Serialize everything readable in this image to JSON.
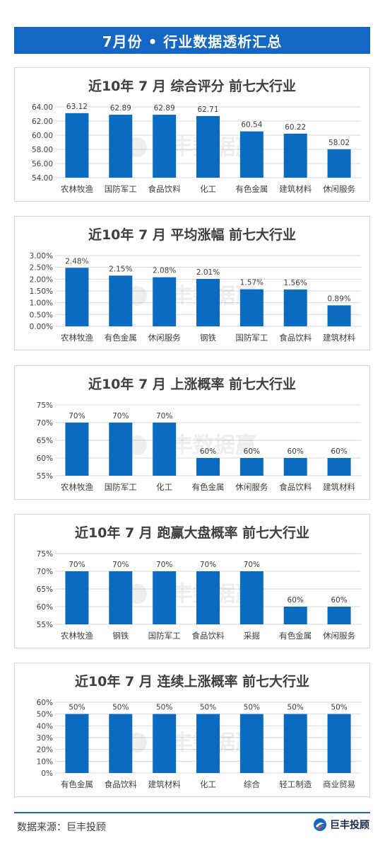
{
  "header": {
    "title": "7月份 • 行业数据透析汇总"
  },
  "watermark": "巨丰数据赢",
  "colors": {
    "accent": "#1467c4",
    "bar": "#0b6bc0",
    "grid": "#d9d9d9"
  },
  "chart_data": [
    {
      "type": "bar",
      "title": "近10年 7  月 综合评分 前七大行业",
      "categories": [
        "农林牧渔",
        "国防军工",
        "食品饮料",
        "化工",
        "有色金属",
        "建筑材料",
        "休闲服务"
      ],
      "values": [
        63.12,
        62.89,
        62.89,
        62.71,
        60.54,
        60.22,
        58.02
      ],
      "value_labels": [
        "63.12",
        "62.89",
        "62.89",
        "62.71",
        "60.54",
        "60.22",
        "58.02"
      ],
      "yticks": [
        "54.00",
        "56.00",
        "58.00",
        "60.00",
        "62.00",
        "64.00"
      ],
      "ylim": [
        54,
        64
      ],
      "grid": true
    },
    {
      "type": "bar",
      "title": "近10年 7  月 平均涨幅 前七大行业",
      "categories": [
        "农林牧渔",
        "有色金属",
        "休闲服务",
        "钢铁",
        "国防军工",
        "食品饮料",
        "建筑材料"
      ],
      "values": [
        2.48,
        2.15,
        2.08,
        2.01,
        1.57,
        1.56,
        0.89
      ],
      "value_labels": [
        "2.48%",
        "2.15%",
        "2.08%",
        "2.01%",
        "1.57%",
        "1.56%",
        "0.89%"
      ],
      "yticks": [
        "0.00%",
        "0.50%",
        "1.00%",
        "1.50%",
        "2.00%",
        "2.50%",
        "3.00%"
      ],
      "ylim": [
        0,
        3
      ],
      "grid": true
    },
    {
      "type": "bar",
      "title": "近10年 7  月 上涨概率 前七大行业",
      "categories": [
        "农林牧渔",
        "国防军工",
        "化工",
        "有色金属",
        "休闲服务",
        "食品饮料",
        "建筑材料"
      ],
      "values": [
        70,
        70,
        70,
        60,
        60,
        60,
        60
      ],
      "value_labels": [
        "70%",
        "70%",
        "70%",
        "60%",
        "60%",
        "60%",
        "60%"
      ],
      "yticks": [
        "55%",
        "60%",
        "65%",
        "70%",
        "75%"
      ],
      "ylim": [
        55,
        75
      ],
      "grid": true
    },
    {
      "type": "bar",
      "title": "近10年 7  月 跑赢大盘概率 前七大行业",
      "categories": [
        "农林牧渔",
        "钢铁",
        "国防军工",
        "食品饮料",
        "采掘",
        "有色金属",
        "休闲服务"
      ],
      "values": [
        70,
        70,
        70,
        70,
        70,
        60,
        60
      ],
      "value_labels": [
        "70%",
        "70%",
        "70%",
        "70%",
        "70%",
        "60%",
        "60%"
      ],
      "yticks": [
        "55%",
        "60%",
        "65%",
        "70%",
        "75%"
      ],
      "ylim": [
        55,
        75
      ],
      "grid": true
    },
    {
      "type": "bar",
      "title": "近10年 7  月 连续上涨概率 前七大行业",
      "categories": [
        "有色金属",
        "食品饮料",
        "建筑材料",
        "化工",
        "综合",
        "轻工制造",
        "商业贸易"
      ],
      "values": [
        50,
        50,
        50,
        50,
        50,
        50,
        50
      ],
      "value_labels": [
        "50%",
        "50%",
        "50%",
        "50%",
        "50%",
        "50%",
        "50%"
      ],
      "yticks": [
        "0%",
        "10%",
        "20%",
        "30%",
        "40%",
        "50%",
        "60%"
      ],
      "ylim": [
        0,
        60
      ],
      "grid": true
    }
  ],
  "footer": {
    "source": "数据来源：巨丰投顾",
    "brand": "巨丰投顾"
  }
}
